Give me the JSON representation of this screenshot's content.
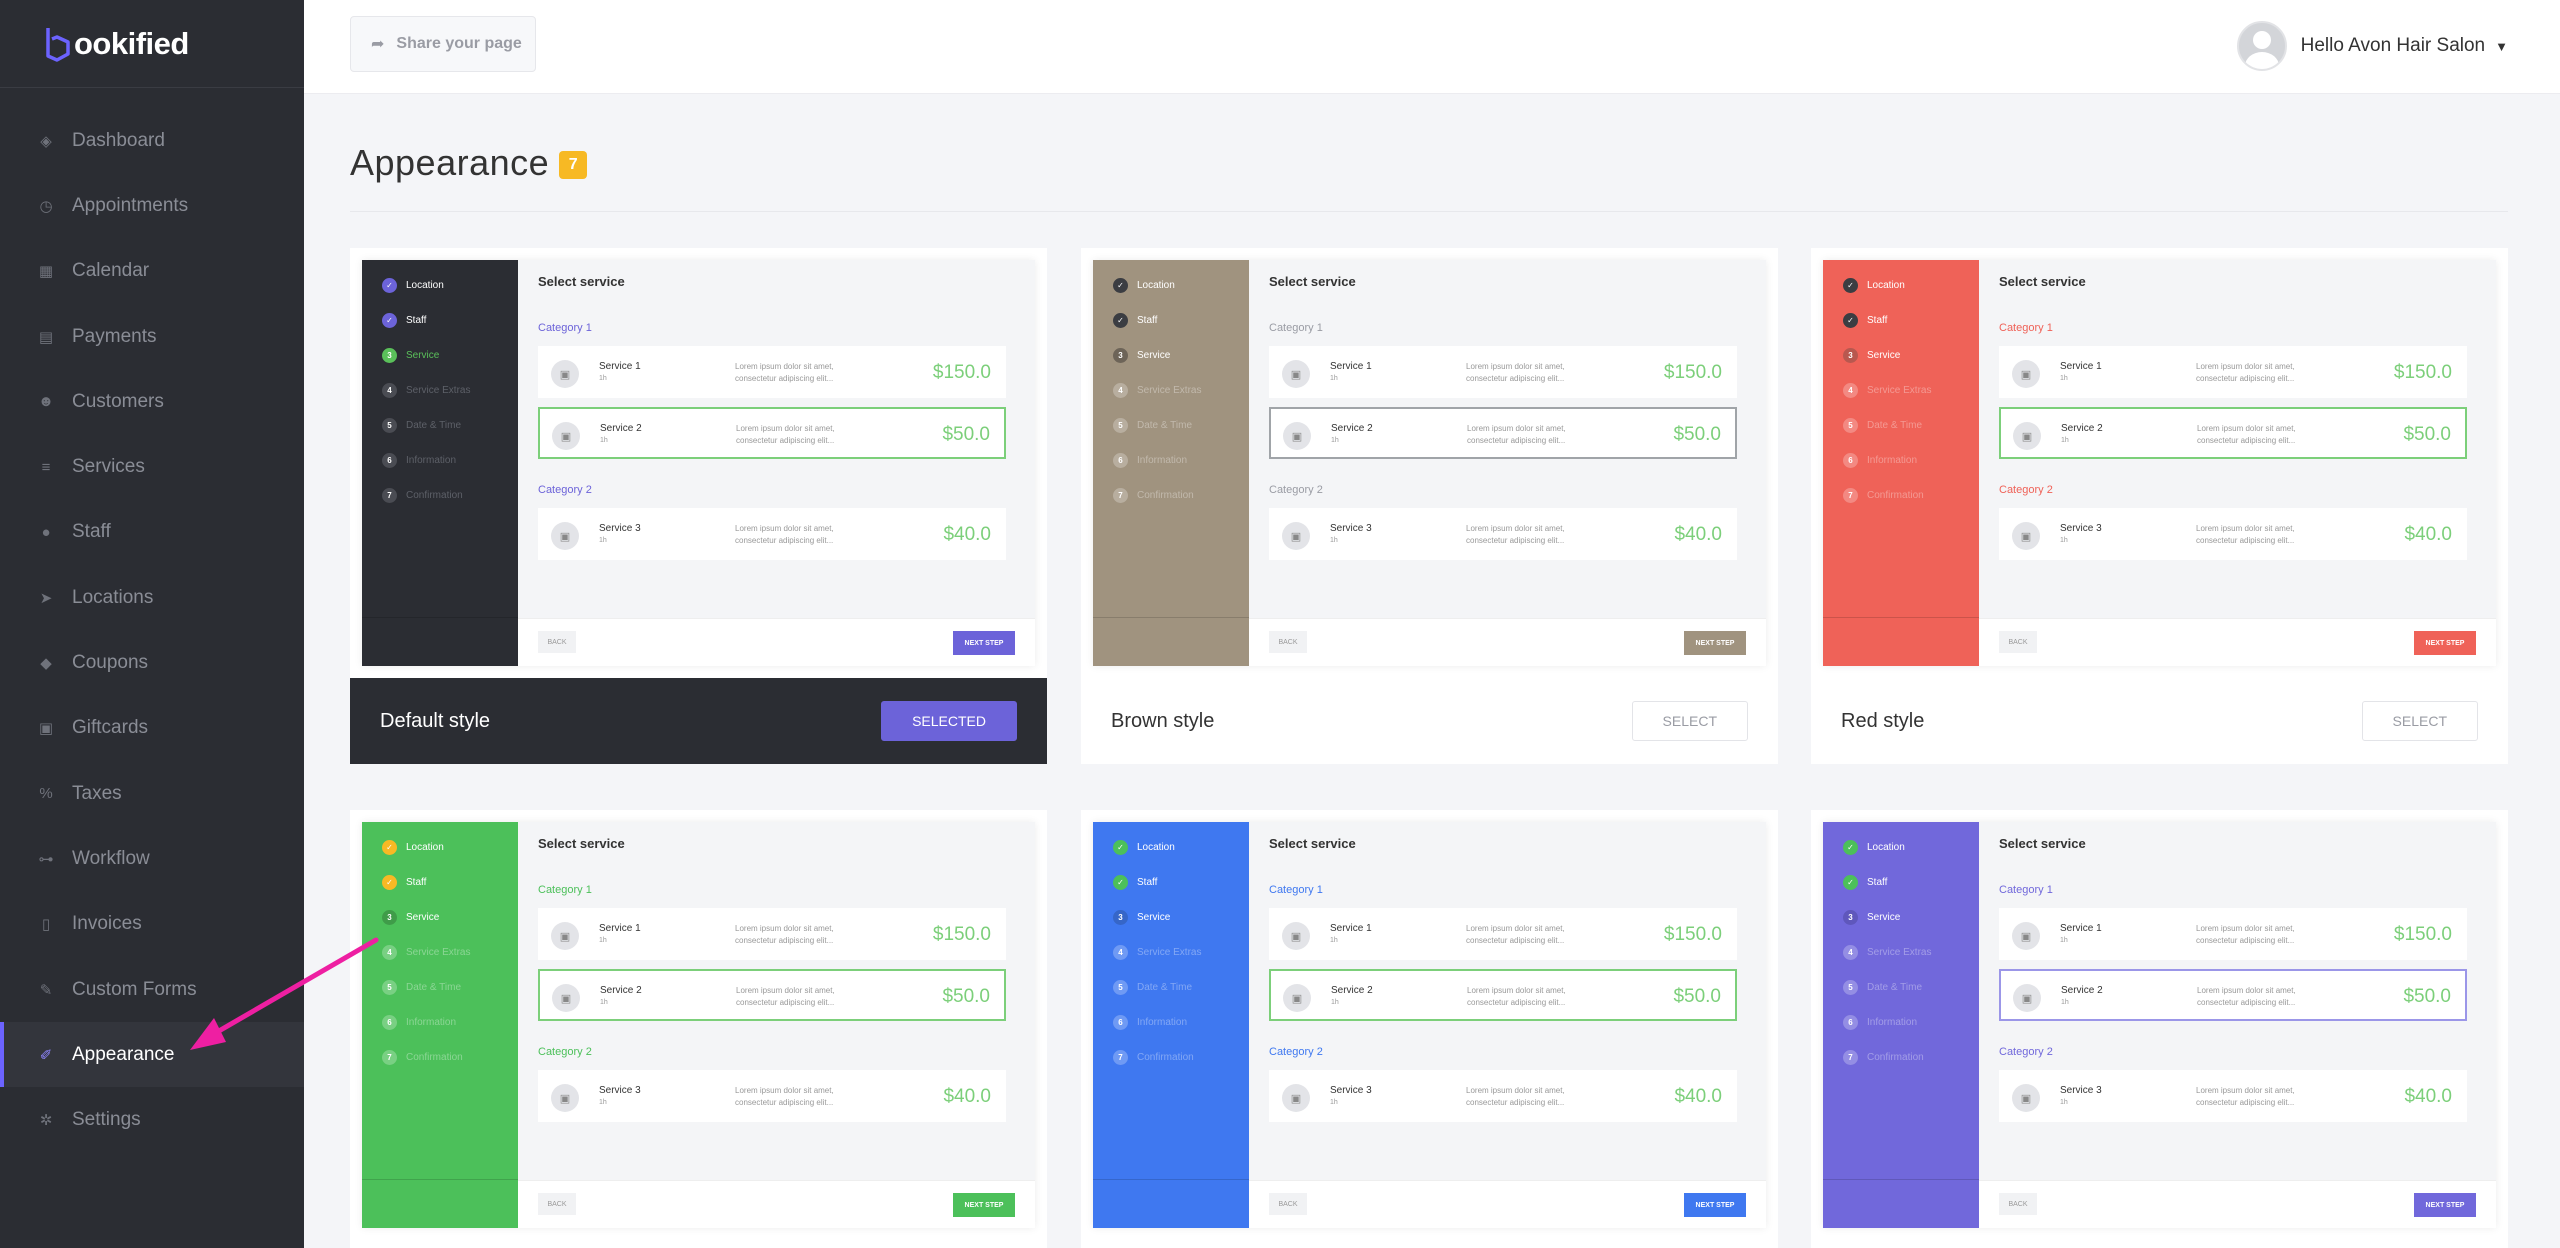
{
  "brand": {
    "logo_text": "ookified",
    "accent": "#6c63ff"
  },
  "sidebar": {
    "items": [
      {
        "label": "Dashboard",
        "icon": "cube-icon",
        "glyph": "◈"
      },
      {
        "label": "Appointments",
        "icon": "clock-icon",
        "glyph": "◷"
      },
      {
        "label": "Calendar",
        "icon": "calendar-icon",
        "glyph": "▦"
      },
      {
        "label": "Payments",
        "icon": "wallet-icon",
        "glyph": "▤"
      },
      {
        "label": "Customers",
        "icon": "users-icon",
        "glyph": "☻"
      },
      {
        "label": "Services",
        "icon": "list-icon",
        "glyph": "≡"
      },
      {
        "label": "Staff",
        "icon": "user-icon",
        "glyph": "●"
      },
      {
        "label": "Locations",
        "icon": "location-arrow-icon",
        "glyph": "➤"
      },
      {
        "label": "Coupons",
        "icon": "tag-icon",
        "glyph": "◆"
      },
      {
        "label": "Giftcards",
        "icon": "gift-icon",
        "glyph": "▣"
      },
      {
        "label": "Taxes",
        "icon": "percent-icon",
        "glyph": "%"
      },
      {
        "label": "Workflow",
        "icon": "workflow-icon",
        "glyph": "⊶"
      },
      {
        "label": "Invoices",
        "icon": "invoice-icon",
        "glyph": "▯"
      },
      {
        "label": "Custom Forms",
        "icon": "tools-icon",
        "glyph": "✎"
      },
      {
        "label": "Appearance",
        "icon": "brush-icon",
        "glyph": "✐",
        "active": true
      },
      {
        "label": "Settings",
        "icon": "gear-icon",
        "glyph": "✲"
      }
    ]
  },
  "header": {
    "share_label": "Share your page",
    "user_greeting": "Hello Avon Hair Salon"
  },
  "page": {
    "title": "Appearance",
    "count": "7"
  },
  "preview_text": {
    "select_service": "Select service",
    "steps": [
      "Location",
      "Staff",
      "Service",
      "Service Extras",
      "Date & Time",
      "Information",
      "Confirmation"
    ],
    "category1": "Category 1",
    "category2": "Category 2",
    "services": [
      {
        "name": "Service 1",
        "duration": "1h",
        "desc": "Lorem ipsum dolor sit amet, consectetur adipiscing elit...",
        "price": "$150.0"
      },
      {
        "name": "Service 2",
        "duration": "1h",
        "desc": "Lorem ipsum dolor sit amet, consectetur adipiscing elit...",
        "price": "$50.0"
      },
      {
        "name": "Service 3",
        "duration": "1h",
        "desc": "Lorem ipsum dolor sit amet, consectetur adipiscing elit...",
        "price": "$40.0"
      }
    ],
    "back": "BACK",
    "next": "NEXT STEP"
  },
  "styles": [
    {
      "name": "Default style",
      "button": "SELECTED",
      "selected": true,
      "side_color": "#2b2d33",
      "accent": "#6c63d9",
      "done_dot": "#6c63d9",
      "current_dot": "#5ac05a",
      "cat_color": "#6c63d9",
      "next_color": "#6c63d9",
      "selected_border": "#7ccf7a"
    },
    {
      "name": "Brown style",
      "button": "SELECT",
      "selected": false,
      "side_color": "#a0937f",
      "accent": "#a0937f",
      "done_dot": "#3b3d42",
      "current_dot": "#6d6458",
      "cat_color": "#9a9ca4",
      "next_color": "#a0937f",
      "selected_border": "#a0a4a8"
    },
    {
      "name": "Red style",
      "button": "SELECT",
      "selected": false,
      "side_color": "#ef6258",
      "accent": "#ef6258",
      "done_dot": "#3b3d42",
      "current_dot": "#b8584f",
      "cat_color": "#ef6258",
      "next_color": "#ef6258",
      "selected_border": "#7ccf7a"
    },
    {
      "name": "",
      "button": "",
      "selected": false,
      "side_color": "#4cc05a",
      "accent": "#4cc05a",
      "done_dot": "#f7b924",
      "current_dot": "#3f9c49",
      "cat_color": "#4cc05a",
      "next_color": "#4cc05a",
      "selected_border": "#7ccf7a"
    },
    {
      "name": "",
      "button": "",
      "selected": false,
      "side_color": "#3f78f0",
      "accent": "#3f78f0",
      "done_dot": "#4cc05a",
      "current_dot": "#3666c8",
      "cat_color": "#3f78f0",
      "next_color": "#3f78f0",
      "selected_border": "#7ccf7a"
    },
    {
      "name": "",
      "button": "",
      "selected": false,
      "side_color": "#7168db",
      "accent": "#7168db",
      "done_dot": "#4cc05a",
      "current_dot": "#5f57bc",
      "cat_color": "#7168db",
      "next_color": "#7168db",
      "selected_border": "#9b96e8"
    }
  ]
}
